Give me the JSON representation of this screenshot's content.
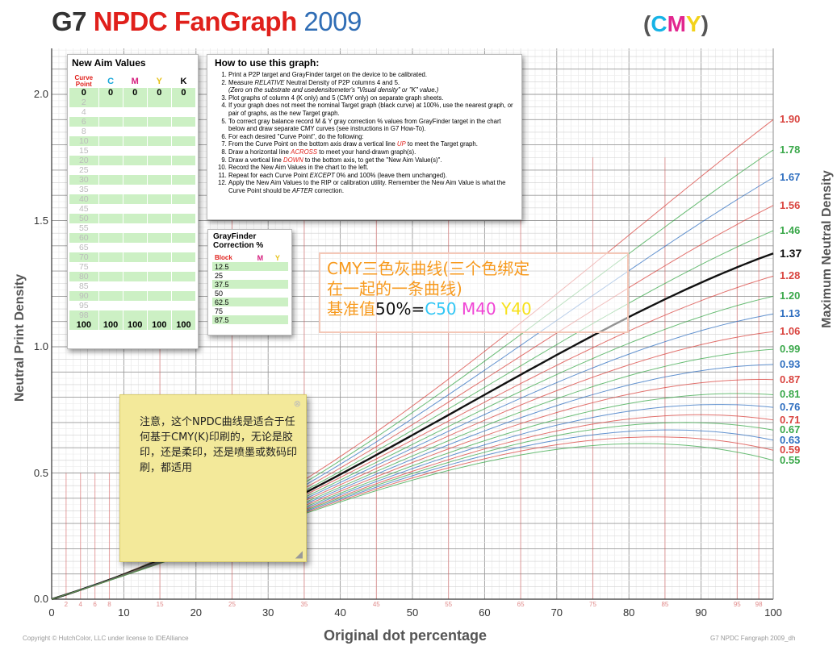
{
  "title": {
    "g7": "G7",
    "npdc": "NPDC FanGraph",
    "year": "2009"
  },
  "cmy_tag": {
    "open": "(",
    "c": "C",
    "m": "M",
    "y": "Y",
    "close": ")"
  },
  "axis": {
    "xlabel": "Original dot percentage",
    "ylabel_left": "Neutral Print Density",
    "ylabel_right": "Maximum Neutral Density"
  },
  "copyright_left": "Copyright © HutchColor, LLC under license to IDEAlliance",
  "copyright_right": "G7 NPDC Fangraph 2009_dh",
  "chart_data": {
    "type": "line",
    "title": "G7 NPDC FanGraph 2009",
    "xlabel": "Original dot percentage",
    "ylabel": "Neutral Print Density",
    "xlim": [
      0,
      100
    ],
    "ylim": [
      0,
      2.0
    ],
    "x_ticks": [
      0,
      10,
      20,
      30,
      40,
      50,
      60,
      70,
      80,
      90,
      100
    ],
    "x_minor_ticks": [
      2,
      4,
      6,
      8,
      15,
      25,
      35,
      45,
      55,
      65,
      75,
      85,
      95,
      98
    ],
    "y_ticks": [
      "0.0",
      "0.5",
      "1.0",
      "1.5",
      "2.0"
    ],
    "grid": true,
    "target_curve_dmax": 1.37,
    "curve_dmax_values": [
      {
        "label": "1.90",
        "color": "#d9443f"
      },
      {
        "label": "1.78",
        "color": "#3aa84a"
      },
      {
        "label": "1.67",
        "color": "#2f6fc0"
      },
      {
        "label": "1.56",
        "color": "#d9443f"
      },
      {
        "label": "1.46",
        "color": "#3aa84a"
      },
      {
        "label": "1.37",
        "color": "#111111"
      },
      {
        "label": "1.28",
        "color": "#d9443f"
      },
      {
        "label": "1.20",
        "color": "#3aa84a"
      },
      {
        "label": "1.13",
        "color": "#2f6fc0"
      },
      {
        "label": "1.06",
        "color": "#d9443f"
      },
      {
        "label": "0.99",
        "color": "#3aa84a"
      },
      {
        "label": "0.93",
        "color": "#2f6fc0"
      },
      {
        "label": "0.87",
        "color": "#d9443f"
      },
      {
        "label": "0.81",
        "color": "#3aa84a"
      },
      {
        "label": "0.76",
        "color": "#2f6fc0"
      },
      {
        "label": "0.71",
        "color": "#d9443f"
      },
      {
        "label": "0.67",
        "color": "#3aa84a"
      },
      {
        "label": "0.63",
        "color": "#2f6fc0"
      },
      {
        "label": "0.59",
        "color": "#d9443f"
      },
      {
        "label": "0.55",
        "color": "#3aa84a"
      }
    ]
  },
  "aim_panel": {
    "title": "New Aim Values",
    "headers": {
      "curve": "Curve",
      "point": "Point",
      "c": "C",
      "m": "M",
      "y": "Y",
      "k": "K"
    },
    "rows": [
      {
        "pt": "0",
        "c": "0",
        "m": "0",
        "y": "0",
        "k": "0",
        "bold": true
      },
      {
        "pt": "2"
      },
      {
        "pt": "4"
      },
      {
        "pt": "6"
      },
      {
        "pt": "8"
      },
      {
        "pt": "10"
      },
      {
        "pt": "15"
      },
      {
        "pt": "20"
      },
      {
        "pt": "25"
      },
      {
        "pt": "30"
      },
      {
        "pt": "35"
      },
      {
        "pt": "40"
      },
      {
        "pt": "45"
      },
      {
        "pt": "50"
      },
      {
        "pt": "55"
      },
      {
        "pt": "60"
      },
      {
        "pt": "65"
      },
      {
        "pt": "70"
      },
      {
        "pt": "75"
      },
      {
        "pt": "80"
      },
      {
        "pt": "85"
      },
      {
        "pt": "90"
      },
      {
        "pt": "95"
      },
      {
        "pt": "98"
      },
      {
        "pt": "100",
        "c": "100",
        "m": "100",
        "y": "100",
        "k": "100",
        "bold": true
      }
    ]
  },
  "howto": {
    "title": "How to use this graph:",
    "steps": [
      "Print a P2P target and GrayFinder target on the device to be calibrated.",
      "Measure RELATIVE Neutral Density of P2P columns 4 and 5.",
      "(Zero on the substrate and usedensitometer's \"Visual density\" or \"K\" value.)",
      "Plot graphs of column 4 (K only) and 5 (CMY only) on separate graph sheets.",
      "If your graph does not meet the nominal Target graph (black curve) at 100%, use the nearest graph, or pair of graphs, as the new Target graph.",
      "To correct gray balance record M & Y gray correction % values from GrayFinder target in the chart below and draw separate CMY curves (see instructions in G7 How-To).",
      "For each desired \"Curve Point\", do the following:",
      "From the Curve Point on the bottom axis draw a vertical line UP to meet the Target graph.",
      "Draw a horizontal line ACROSS to meet your hand-drawn graph(s).",
      "Draw a vertical line DOWN to the bottom axis, to get the \"New Aim Value(s)\".",
      "Record the New Aim Values in the chart to the left.",
      "Repeat for each Curve Point EXCEPT 0% and 100% (leave them unchanged).",
      "Apply the New Aim Values to the RIP or calibration utility.  Remember the New Aim Value is what the Curve Point should be AFTER correction."
    ],
    "emph": {
      "relative": "RELATIVE",
      "up": "UP",
      "across": "ACROSS",
      "down": "DOWN",
      "except": "EXCEPT",
      "after": "AFTER"
    }
  },
  "grayfinder": {
    "title1": "GrayFinder",
    "title2": "Correction %",
    "headers": {
      "block": "Block",
      "m": "M",
      "y": "Y"
    },
    "rows": [
      "12.5",
      "25",
      "37.5",
      "50",
      "62.5",
      "75",
      "87.5"
    ]
  },
  "annotation": {
    "line1": "CMY三色灰曲线(三个色绑定",
    "line2": "在一起的一条曲线)",
    "line3_prefix": "基准值",
    "line3_eq": "50%=",
    "c50": "C50",
    "m40": "M40",
    "y40": "Y40"
  },
  "sticky_note": {
    "text": "注意，这个NPDC曲线是适合于任何基于CMY(K)印刷的，无论是胶印，还是柔印，还是喷墨或数码印刷，都适用"
  }
}
